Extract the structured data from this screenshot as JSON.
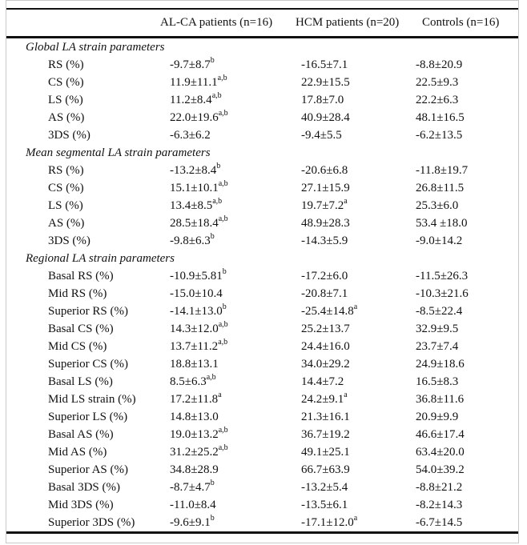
{
  "colors": {
    "ink": "#111111",
    "frame": "#c9c9c9"
  },
  "table": {
    "columns": [
      "",
      "AL-CA patients (n=16)",
      "HCM patients (n=20)",
      "Controls (n=16)"
    ],
    "sections": [
      {
        "title": "Global LA strain parameters",
        "rows": [
          {
            "label": "RS (%)",
            "values": [
              {
                "v": "-9.7±8.7",
                "sup": "b"
              },
              {
                "v": "-16.5±7.1",
                "sup": ""
              },
              {
                "v": "-8.8±20.9",
                "sup": ""
              }
            ]
          },
          {
            "label": "CS (%)",
            "values": [
              {
                "v": "11.9±11.1",
                "sup": "a,b"
              },
              {
                "v": "22.9±15.5",
                "sup": ""
              },
              {
                "v": "22.5±9.3",
                "sup": ""
              }
            ]
          },
          {
            "label": "LS (%)",
            "values": [
              {
                "v": "11.2±8.4",
                "sup": "a,b"
              },
              {
                "v": "17.8±7.0",
                "sup": ""
              },
              {
                "v": "22.2±6.3",
                "sup": ""
              }
            ]
          },
          {
            "label": "AS (%)",
            "values": [
              {
                "v": "22.0±19.6",
                "sup": "a,b"
              },
              {
                "v": "40.9±28.4",
                "sup": ""
              },
              {
                "v": "48.1±16.5",
                "sup": ""
              }
            ]
          },
          {
            "label": "3DS (%)",
            "values": [
              {
                "v": "-6.3±6.2",
                "sup": ""
              },
              {
                "v": "-9.4±5.5",
                "sup": ""
              },
              {
                "v": "-6.2±13.5",
                "sup": ""
              }
            ]
          }
        ]
      },
      {
        "title": "Mean segmental LA strain parameters",
        "rows": [
          {
            "label": "RS (%)",
            "values": [
              {
                "v": "-13.2±8.4",
                "sup": "b"
              },
              {
                "v": "-20.6±6.8",
                "sup": ""
              },
              {
                "v": "-11.8±19.7",
                "sup": ""
              }
            ]
          },
          {
            "label": "CS (%)",
            "values": [
              {
                "v": "15.1±10.1",
                "sup": "a,b"
              },
              {
                "v": "27.1±15.9",
                "sup": ""
              },
              {
                "v": "26.8±11.5",
                "sup": ""
              }
            ]
          },
          {
            "label": "LS (%)",
            "values": [
              {
                "v": "13.4±8.5",
                "sup": "a,b"
              },
              {
                "v": "19.7±7.2",
                "sup": "a"
              },
              {
                "v": "25.3±6.0",
                "sup": ""
              }
            ]
          },
          {
            "label": "AS (%)",
            "values": [
              {
                "v": "28.5±18.4",
                "sup": "a,b"
              },
              {
                "v": "48.9±28.3",
                "sup": ""
              },
              {
                "v": "53.4 ±18.0",
                "sup": ""
              }
            ]
          },
          {
            "label": "3DS (%)",
            "values": [
              {
                "v": "-9.8±6.3",
                "sup": "b"
              },
              {
                "v": "-14.3±5.9",
                "sup": ""
              },
              {
                "v": "-9.0±14.2",
                "sup": ""
              }
            ]
          }
        ]
      },
      {
        "title": "Regional LA strain parameters",
        "rows": [
          {
            "label": "Basal RS (%)",
            "values": [
              {
                "v": "-10.9±5.81",
                "sup": "b"
              },
              {
                "v": "-17.2±6.0",
                "sup": ""
              },
              {
                "v": "-11.5±26.3",
                "sup": ""
              }
            ]
          },
          {
            "label": "Mid RS (%)",
            "values": [
              {
                "v": "-15.0±10.4",
                "sup": ""
              },
              {
                "v": "-20.8±7.1",
                "sup": ""
              },
              {
                "v": "-10.3±21.6",
                "sup": ""
              }
            ]
          },
          {
            "label": "Superior RS (%)",
            "values": [
              {
                "v": "-14.1±13.0",
                "sup": "b"
              },
              {
                "v": "-25.4±14.8",
                "sup": "a"
              },
              {
                "v": "-8.5±22.4",
                "sup": ""
              }
            ]
          },
          {
            "label": "Basal CS (%)",
            "values": [
              {
                "v": "14.3±12.0",
                "sup": "a,b"
              },
              {
                "v": "25.2±13.7",
                "sup": ""
              },
              {
                "v": "32.9±9.5",
                "sup": ""
              }
            ]
          },
          {
            "label": "Mid CS (%)",
            "values": [
              {
                "v": "13.7±11.2",
                "sup": "a,b"
              },
              {
                "v": "24.4±16.0",
                "sup": ""
              },
              {
                "v": "23.7±7.4",
                "sup": ""
              }
            ]
          },
          {
            "label": "Superior CS (%)",
            "values": [
              {
                "v": "18.8±13.1",
                "sup": ""
              },
              {
                "v": "34.0±29.2",
                "sup": ""
              },
              {
                "v": "24.9±18.6",
                "sup": ""
              }
            ]
          },
          {
            "label": "Basal LS (%)",
            "values": [
              {
                "v": "8.5±6.3",
                "sup": "a,b"
              },
              {
                "v": "14.4±7.2",
                "sup": ""
              },
              {
                "v": "16.5±8.3",
                "sup": ""
              }
            ]
          },
          {
            "label": "Mid LS strain (%)",
            "values": [
              {
                "v": "17.2±11.8",
                "sup": "a"
              },
              {
                "v": "24.2±9.1",
                "sup": "a"
              },
              {
                "v": "36.8±11.6",
                "sup": ""
              }
            ]
          },
          {
            "label": "Superior LS (%)",
            "values": [
              {
                "v": "14.8±13.0",
                "sup": ""
              },
              {
                "v": "21.3±16.1",
                "sup": ""
              },
              {
                "v": "20.9±9.9",
                "sup": ""
              }
            ]
          },
          {
            "label": "Basal AS (%)",
            "values": [
              {
                "v": "19.0±13.2",
                "sup": "a,b"
              },
              {
                "v": "36.7±19.2",
                "sup": ""
              },
              {
                "v": "46.6±17.4",
                "sup": ""
              }
            ]
          },
          {
            "label": "Mid AS (%)",
            "values": [
              {
                "v": "31.2±25.2",
                "sup": "a,b"
              },
              {
                "v": "49.1±25.1",
                "sup": ""
              },
              {
                "v": "63.4±20.0",
                "sup": ""
              }
            ]
          },
          {
            "label": "Superior AS (%)",
            "values": [
              {
                "v": "34.8±28.9",
                "sup": ""
              },
              {
                "v": "66.7±63.9",
                "sup": ""
              },
              {
                "v": "54.0±39.2",
                "sup": ""
              }
            ]
          },
          {
            "label": "Basal 3DS (%)",
            "values": [
              {
                "v": "-8.7±4.7",
                "sup": "b"
              },
              {
                "v": "-13.2±5.4",
                "sup": ""
              },
              {
                "v": "-8.8±21.2",
                "sup": ""
              }
            ]
          },
          {
            "label": "Mid 3DS (%)",
            "values": [
              {
                "v": "-11.0±8.4",
                "sup": ""
              },
              {
                "v": "-13.5±6.1",
                "sup": ""
              },
              {
                "v": "-8.2±14.3",
                "sup": ""
              }
            ]
          },
          {
            "label": "Superior 3DS (%)",
            "values": [
              {
                "v": "-9.6±9.1",
                "sup": "b"
              },
              {
                "v": "-17.1±12.0",
                "sup": "a"
              },
              {
                "v": "-6.7±14.5",
                "sup": ""
              }
            ]
          }
        ]
      }
    ]
  }
}
